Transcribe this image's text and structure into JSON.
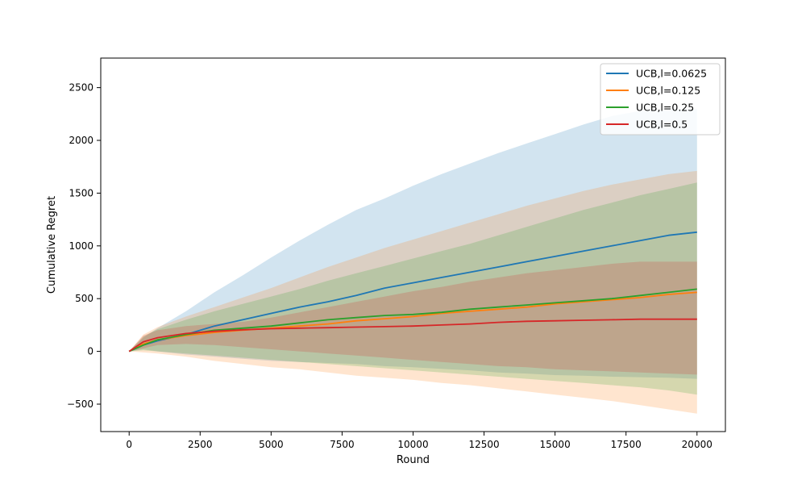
{
  "chart_data": {
    "type": "line",
    "xlabel": "Round",
    "ylabel": "Cumulative Regret",
    "xlim": [
      -1000,
      21000
    ],
    "ylim": [
      -760,
      2780
    ],
    "xticks": [
      0,
      2500,
      5000,
      7500,
      10000,
      12500,
      15000,
      17500,
      20000
    ],
    "yticks": [
      -500,
      0,
      500,
      1000,
      1500,
      2000,
      2500
    ],
    "legend_position": "top-right",
    "series": [
      {
        "name": "UCB,l=0.0625",
        "color": "#1f77b4",
        "x": [
          0,
          500,
          1000,
          2000,
          3000,
          4000,
          5000,
          6000,
          7000,
          8000,
          9000,
          10000,
          11000,
          12000,
          13000,
          14000,
          15000,
          16000,
          17000,
          18000,
          19000,
          20000
        ],
        "mean": [
          0,
          60,
          100,
          160,
          240,
          300,
          360,
          420,
          470,
          530,
          600,
          650,
          700,
          750,
          800,
          850,
          900,
          950,
          1000,
          1050,
          1100,
          1130
        ],
        "upper": [
          0,
          130,
          220,
          380,
          560,
          720,
          890,
          1050,
          1200,
          1340,
          1450,
          1570,
          1680,
          1780,
          1880,
          1970,
          2060,
          2150,
          2230,
          2280,
          2290,
          2300
        ],
        "lower": [
          0,
          20,
          0,
          -30,
          -50,
          -70,
          -90,
          -100,
          -110,
          -120,
          -140,
          -150,
          -165,
          -180,
          -200,
          -210,
          -225,
          -230,
          -240,
          -245,
          -250,
          -260
        ]
      },
      {
        "name": "UCB,l=0.125",
        "color": "#ff7f0e",
        "x": [
          0,
          500,
          1000,
          2000,
          3000,
          4000,
          5000,
          6000,
          7000,
          8000,
          9000,
          10000,
          11000,
          12000,
          13000,
          14000,
          15000,
          16000,
          17000,
          18000,
          19000,
          20000
        ],
        "mean": [
          0,
          70,
          110,
          150,
          180,
          200,
          220,
          240,
          260,
          290,
          310,
          330,
          360,
          380,
          400,
          420,
          450,
          470,
          490,
          510,
          540,
          560
        ],
        "upper": [
          0,
          160,
          230,
          330,
          420,
          510,
          600,
          700,
          800,
          890,
          980,
          1060,
          1140,
          1220,
          1300,
          1380,
          1450,
          1520,
          1580,
          1630,
          1680,
          1710
        ],
        "lower": [
          0,
          -10,
          -20,
          -50,
          -90,
          -120,
          -150,
          -170,
          -200,
          -230,
          -250,
          -270,
          -300,
          -320,
          -350,
          -380,
          -410,
          -440,
          -470,
          -510,
          -550,
          -590
        ]
      },
      {
        "name": "UCB,l=0.25",
        "color": "#2ca02c",
        "x": [
          0,
          500,
          1000,
          2000,
          3000,
          4000,
          5000,
          6000,
          7000,
          8000,
          9000,
          10000,
          11000,
          12000,
          13000,
          14000,
          15000,
          16000,
          17000,
          18000,
          19000,
          20000
        ],
        "mean": [
          0,
          60,
          110,
          160,
          200,
          220,
          240,
          270,
          300,
          320,
          340,
          350,
          370,
          400,
          420,
          440,
          460,
          480,
          500,
          530,
          560,
          590
        ],
        "upper": [
          0,
          140,
          210,
          300,
          380,
          450,
          520,
          590,
          670,
          740,
          810,
          880,
          950,
          1020,
          1100,
          1180,
          1260,
          1340,
          1410,
          1480,
          1540,
          1600
        ],
        "lower": [
          0,
          10,
          0,
          -20,
          -40,
          -60,
          -80,
          -100,
          -120,
          -140,
          -160,
          -180,
          -200,
          -220,
          -240,
          -260,
          -280,
          -300,
          -320,
          -340,
          -370,
          -410
        ]
      },
      {
        "name": "UCB,l=0.5",
        "color": "#d62728",
        "x": [
          0,
          500,
          1000,
          2000,
          3000,
          4000,
          5000,
          6000,
          7000,
          8000,
          9000,
          10000,
          11000,
          12000,
          13000,
          14000,
          15000,
          16000,
          17000,
          18000,
          19000,
          20000
        ],
        "mean": [
          0,
          90,
          130,
          170,
          190,
          205,
          215,
          220,
          225,
          230,
          235,
          240,
          250,
          260,
          275,
          285,
          290,
          295,
          300,
          305,
          305,
          305
        ],
        "upper": [
          0,
          150,
          200,
          240,
          260,
          280,
          320,
          370,
          420,
          470,
          520,
          570,
          610,
          660,
          700,
          740,
          770,
          800,
          830,
          850,
          850,
          850
        ],
        "lower": [
          0,
          30,
          60,
          70,
          60,
          40,
          20,
          0,
          -20,
          -40,
          -60,
          -80,
          -100,
          -120,
          -140,
          -150,
          -170,
          -180,
          -190,
          -200,
          -210,
          -220
        ]
      }
    ]
  }
}
